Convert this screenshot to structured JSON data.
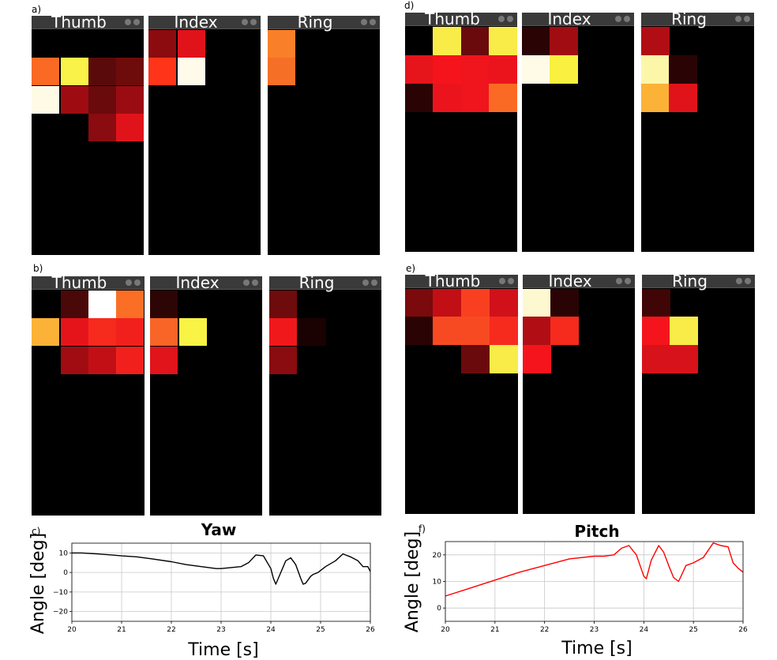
{
  "panel_labels": [
    "a)",
    "b)",
    "c)",
    "d)",
    "e)",
    "f)"
  ],
  "window_controls": {
    "minimize_icon": "circle-dark-icon",
    "close_icon": "circle-dark-icon"
  },
  "heatmaps": [
    {
      "id": "a",
      "label": "a)",
      "fingers": [
        {
          "name": "Thumb",
          "cells": [
            {
              "r": 2,
              "c": 0,
              "color": "#fb6a24"
            },
            {
              "r": 2,
              "c": 1,
              "color": "#f9f248"
            },
            {
              "r": 2,
              "c": 2,
              "color": "#5a0a0a"
            },
            {
              "r": 2,
              "c": 3,
              "color": "#6e0b0b"
            },
            {
              "r": 3,
              "c": 0,
              "color": "#fffae6"
            },
            {
              "r": 3,
              "c": 1,
              "color": "#9e0c12"
            },
            {
              "r": 3,
              "c": 2,
              "color": "#6a0a0c"
            },
            {
              "r": 3,
              "c": 3,
              "color": "#9a0c12"
            },
            {
              "r": 4,
              "c": 2,
              "color": "#8a0b10"
            },
            {
              "r": 4,
              "c": 3,
              "color": "#e1131a"
            }
          ]
        },
        {
          "name": "Index",
          "cells": [
            {
              "r": 1,
              "c": 0,
              "color": "#8c0b0e"
            },
            {
              "r": 1,
              "c": 1,
              "color": "#e0131b"
            },
            {
              "r": 2,
              "c": 0,
              "color": "#ff3418"
            },
            {
              "r": 2,
              "c": 1,
              "color": "#fffaea"
            }
          ]
        },
        {
          "name": "Ring",
          "cells": [
            {
              "r": 1,
              "c": 0,
              "color": "#f98029"
            },
            {
              "r": 2,
              "c": 0,
              "color": "#f57026"
            }
          ]
        }
      ]
    },
    {
      "id": "b",
      "label": "b)",
      "fingers": [
        {
          "name": "Thumb",
          "cells": [
            {
              "r": 1,
              "c": 1,
              "color": "#4a0808"
            },
            {
              "r": 1,
              "c": 2,
              "color": "#ffffff"
            },
            {
              "r": 1,
              "c": 3,
              "color": "#fb6e25"
            },
            {
              "r": 2,
              "c": 0,
              "color": "#fcb236"
            },
            {
              "r": 2,
              "c": 1,
              "color": "#e5141b"
            },
            {
              "r": 2,
              "c": 2,
              "color": "#f72a1e"
            },
            {
              "r": 2,
              "c": 3,
              "color": "#f2201c"
            },
            {
              "r": 3,
              "c": 1,
              "color": "#a00c12"
            },
            {
              "r": 3,
              "c": 2,
              "color": "#c20f16"
            },
            {
              "r": 3,
              "c": 3,
              "color": "#f2201c"
            }
          ]
        },
        {
          "name": "Index",
          "cells": [
            {
              "r": 1,
              "c": 0,
              "color": "#2e0505"
            },
            {
              "r": 2,
              "c": 0,
              "color": "#f86526"
            },
            {
              "r": 2,
              "c": 1,
              "color": "#f9f345"
            },
            {
              "r": 3,
              "c": 0,
              "color": "#e1131b"
            }
          ]
        },
        {
          "name": "Ring",
          "cells": [
            {
              "r": 1,
              "c": 0,
              "color": "#6e0b0c"
            },
            {
              "r": 2,
              "c": 0,
              "color": "#f0181b"
            },
            {
              "r": 2,
              "c": 1,
              "color": "#1a0202"
            },
            {
              "r": 3,
              "c": 0,
              "color": "#8a0b10"
            }
          ]
        }
      ]
    },
    {
      "id": "d",
      "label": "d)",
      "fingers": [
        {
          "name": "Thumb",
          "cells": [
            {
              "r": 1,
              "c": 1,
              "color": "#f9ec48"
            },
            {
              "r": 1,
              "c": 2,
              "color": "#6a0a0c"
            },
            {
              "r": 1,
              "c": 3,
              "color": "#f9ec48"
            },
            {
              "r": 2,
              "c": 0,
              "color": "#e6141b"
            },
            {
              "r": 2,
              "c": 1,
              "color": "#f5141c"
            },
            {
              "r": 2,
              "c": 2,
              "color": "#f0141c"
            },
            {
              "r": 2,
              "c": 3,
              "color": "#ec141c"
            },
            {
              "r": 3,
              "c": 0,
              "color": "#2a0404"
            },
            {
              "r": 3,
              "c": 1,
              "color": "#ec141c"
            },
            {
              "r": 3,
              "c": 2,
              "color": "#f0141c"
            },
            {
              "r": 3,
              "c": 3,
              "color": "#fb6a24"
            }
          ]
        },
        {
          "name": "Index",
          "cells": [
            {
              "r": 1,
              "c": 0,
              "color": "#2a0404"
            },
            {
              "r": 1,
              "c": 1,
              "color": "#a00c12"
            },
            {
              "r": 2,
              "c": 0,
              "color": "#fffbe6"
            },
            {
              "r": 2,
              "c": 1,
              "color": "#f9f040"
            }
          ]
        },
        {
          "name": "Ring",
          "cells": [
            {
              "r": 1,
              "c": 0,
              "color": "#b00e14"
            },
            {
              "r": 2,
              "c": 0,
              "color": "#fcf7a8"
            },
            {
              "r": 2,
              "c": 1,
              "color": "#2a0404"
            },
            {
              "r": 3,
              "c": 0,
              "color": "#fcb236"
            },
            {
              "r": 3,
              "c": 1,
              "color": "#e0131b"
            }
          ]
        }
      ]
    },
    {
      "id": "e",
      "label": "e)",
      "fingers": [
        {
          "name": "Thumb",
          "cells": [
            {
              "r": 1,
              "c": 0,
              "color": "#7a0a0c"
            },
            {
              "r": 1,
              "c": 1,
              "color": "#c20f16"
            },
            {
              "r": 1,
              "c": 2,
              "color": "#f84020"
            },
            {
              "r": 1,
              "c": 3,
              "color": "#d0111a"
            },
            {
              "r": 2,
              "c": 0,
              "color": "#2a0404"
            },
            {
              "r": 2,
              "c": 1,
              "color": "#f74a22"
            },
            {
              "r": 2,
              "c": 2,
              "color": "#f74a22"
            },
            {
              "r": 2,
              "c": 3,
              "color": "#f72a1e"
            },
            {
              "r": 3,
              "c": 2,
              "color": "#6a0a0c"
            },
            {
              "r": 3,
              "c": 3,
              "color": "#f9ec48"
            }
          ]
        },
        {
          "name": "Index",
          "cells": [
            {
              "r": 1,
              "c": 0,
              "color": "#fdf8d0"
            },
            {
              "r": 1,
              "c": 1,
              "color": "#2a0404"
            },
            {
              "r": 2,
              "c": 0,
              "color": "#b00e14"
            },
            {
              "r": 2,
              "c": 1,
              "color": "#f72a1e"
            },
            {
              "r": 3,
              "c": 0,
              "color": "#f5141c"
            }
          ]
        },
        {
          "name": "Ring",
          "cells": [
            {
              "r": 1,
              "c": 0,
              "color": "#400606"
            },
            {
              "r": 2,
              "c": 0,
              "color": "#f5141c"
            },
            {
              "r": 2,
              "c": 1,
              "color": "#f9ec48"
            },
            {
              "r": 3,
              "c": 0,
              "color": "#d8121a"
            },
            {
              "r": 3,
              "c": 1,
              "color": "#d8121a"
            }
          ]
        }
      ]
    }
  ],
  "chart_data": [
    {
      "type": "line",
      "id": "c",
      "panel_label": "c)",
      "title": "Yaw",
      "xlabel": "Time [s]",
      "ylabel": "Angle [deg]",
      "xlim": [
        20,
        26
      ],
      "ylim": [
        -25,
        15
      ],
      "xticks": [
        20,
        21,
        22,
        23,
        24,
        25,
        26
      ],
      "yticks": [
        -20,
        -10,
        0,
        10
      ],
      "grid": true,
      "color": "#000000",
      "series": [
        {
          "x": [
            20,
            20.2,
            20.5,
            20.8,
            21.0,
            21.3,
            21.6,
            22.0,
            22.3,
            22.6,
            22.9,
            23.0,
            23.2,
            23.4,
            23.55,
            23.7,
            23.85,
            24.0,
            24.05,
            24.1,
            24.2,
            24.3,
            24.4,
            24.5,
            24.6,
            24.65,
            24.7,
            24.8,
            24.85,
            24.95,
            25.1,
            25.3,
            25.45,
            25.6,
            25.75,
            25.85,
            25.95,
            26.0
          ],
          "y": [
            10,
            10,
            9.5,
            9,
            8.5,
            8,
            7,
            5.5,
            4,
            3,
            2,
            2,
            2.5,
            3,
            5,
            9,
            8.5,
            2,
            -3,
            -6,
            0,
            6,
            7.5,
            4,
            -3,
            -6,
            -5.5,
            -2,
            -1,
            0,
            3,
            6,
            9.5,
            8,
            6,
            3,
            3,
            0.5
          ]
        }
      ]
    },
    {
      "type": "line",
      "id": "f",
      "panel_label": "f)",
      "title": "Pitch",
      "xlabel": "Time [s]",
      "ylabel": "Angle [deg]",
      "xlim": [
        20,
        26
      ],
      "ylim": [
        -5,
        25
      ],
      "xticks": [
        20,
        21,
        22,
        23,
        24,
        25,
        26
      ],
      "yticks": [
        0,
        10,
        20
      ],
      "grid": true,
      "color": "#ff0000",
      "series": [
        {
          "x": [
            20,
            20.5,
            21.0,
            21.5,
            22.0,
            22.5,
            23.0,
            23.2,
            23.4,
            23.55,
            23.7,
            23.85,
            24.0,
            24.05,
            24.15,
            24.3,
            24.4,
            24.5,
            24.6,
            24.7,
            24.75,
            24.85,
            25.0,
            25.2,
            25.4,
            25.55,
            25.7,
            25.8,
            25.9,
            26.0
          ],
          "y": [
            4.5,
            7.5,
            10.5,
            13.5,
            16,
            18.5,
            19.5,
            19.5,
            20,
            22.5,
            23.5,
            20,
            12,
            11,
            18,
            23.5,
            21,
            16,
            11.5,
            10,
            12,
            16,
            17,
            19,
            24.5,
            23.5,
            23,
            17,
            15,
            13.5
          ]
        }
      ]
    }
  ]
}
